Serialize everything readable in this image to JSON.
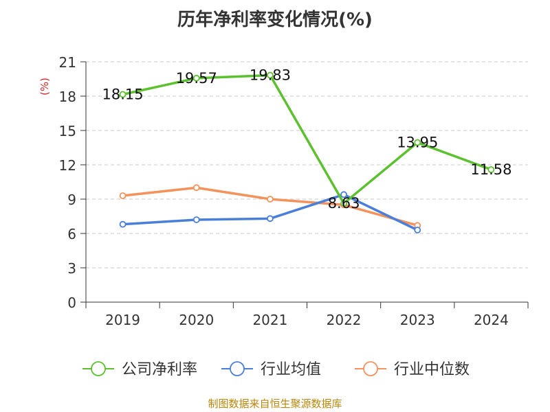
{
  "chart_data": {
    "type": "line",
    "title": "历年净利率变化情况(%)",
    "ylabel": "(%)",
    "xlabel": "",
    "categories": [
      "2019",
      "2020",
      "2021",
      "2022",
      "2023",
      "2024"
    ],
    "yticks": [
      "0",
      "3",
      "6",
      "9",
      "12",
      "15",
      "18",
      "21"
    ],
    "ylim": [
      0,
      21
    ],
    "grid": true,
    "legend_position": "bottom",
    "series": [
      {
        "name": "公司净利率",
        "color": "#5cc12e",
        "values": [
          18.15,
          19.57,
          19.83,
          8.63,
          13.95,
          11.58
        ],
        "labels": [
          "18.15",
          "19.57",
          "19.83",
          "8.63",
          "13.95",
          "11.58"
        ]
      },
      {
        "name": "行业均值",
        "color": "#4a7fd9",
        "values": [
          6.8,
          7.2,
          7.3,
          9.4,
          6.3,
          null
        ]
      },
      {
        "name": "行业中位数",
        "color": "#f4925c",
        "values": [
          9.3,
          10.0,
          9.0,
          8.5,
          6.7,
          null
        ]
      }
    ]
  },
  "source": "制图数据来自恒生聚源数据库"
}
